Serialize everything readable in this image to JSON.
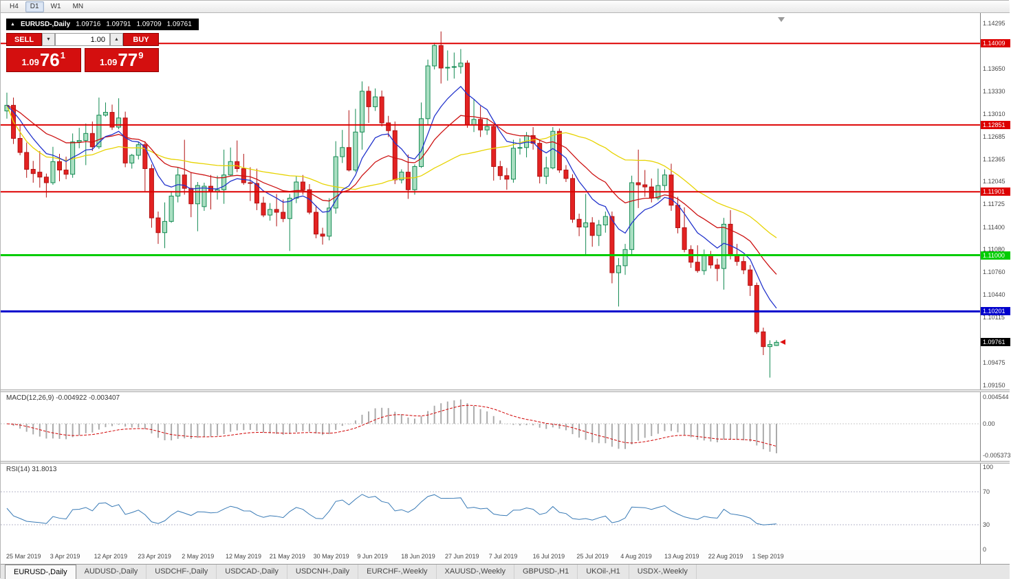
{
  "icons": {
    "window_marker": "▲",
    "spin_down": "▼",
    "spin_up": "▲",
    "shift_marker": "▼"
  },
  "toolbar": {
    "periods": [
      {
        "label": "H4",
        "active": false
      },
      {
        "label": "D1",
        "active": true
      },
      {
        "label": "W1",
        "active": false
      },
      {
        "label": "MN",
        "active": false
      }
    ]
  },
  "title_bar": {
    "symbol": "EURUSD-,Daily",
    "open": "1.09716",
    "high": "1.09791",
    "low": "1.09709",
    "close": "1.09761"
  },
  "trade_panel": {
    "sell_label": "SELL",
    "buy_label": "BUY",
    "volume": "1.00",
    "sell_price": {
      "big_left": "1.09",
      "pips": "76",
      "pip_frac": "1"
    },
    "buy_price": {
      "big_left": "1.09",
      "pips": "77",
      "pip_frac": "9"
    }
  },
  "price_axis": {
    "ticks": [
      "1.14295",
      "1.13650",
      "1.13330",
      "1.13010",
      "1.12685",
      "1.12365",
      "1.12045",
      "1.11725",
      "1.11400",
      "1.11080",
      "1.10760",
      "1.10440",
      "1.10115",
      "1.09475",
      "1.09150"
    ],
    "tags": [
      {
        "text": "1.14009",
        "price": 1.14009,
        "color": "#dd0000"
      },
      {
        "text": "1.12851",
        "price": 1.12851,
        "color": "#dd0000"
      },
      {
        "text": "1.11901",
        "price": 1.11901,
        "color": "#dd0000"
      },
      {
        "text": "1.11000",
        "price": 1.11,
        "color": "#00cc00"
      },
      {
        "text": "1.10201",
        "price": 1.10201,
        "color": "#0000cc"
      },
      {
        "text": "1.09761",
        "price": 1.09761,
        "color": "#000000"
      }
    ]
  },
  "macd_panel": {
    "label": "MACD(12,26,9)",
    "value_main": "-0.004922",
    "value_signal": "-0.003407",
    "axis": [
      "0.004544",
      "0.00",
      "-0.005373"
    ]
  },
  "rsi_panel": {
    "label": "RSI(14)",
    "value": "31.8013",
    "axis": [
      "100",
      "70",
      "30",
      "0"
    ]
  },
  "date_axis": [
    "25 Mar 2019",
    "3 Apr 2019",
    "12 Apr 2019",
    "23 Apr 2019",
    "2 May 2019",
    "12 May 2019",
    "21 May 2019",
    "30 May 2019",
    "9 Jun 2019",
    "18 Jun 2019",
    "27 Jun 2019",
    "7 Jul 2019",
    "16 Jul 2019",
    "25 Jul 2019",
    "4 Aug 2019",
    "13 Aug 2019",
    "22 Aug 2019",
    "1 Sep 2019"
  ],
  "tabs": [
    {
      "label": "EURUSD-,Daily",
      "active": true
    },
    {
      "label": "AUDUSD-,Daily",
      "active": false
    },
    {
      "label": "USDCHF-,Daily",
      "active": false
    },
    {
      "label": "USDCAD-,Daily",
      "active": false
    },
    {
      "label": "USDCNH-,Daily",
      "active": false
    },
    {
      "label": "EURCHF-,Weekly",
      "active": false
    },
    {
      "label": "XAUUSD-,Weekly",
      "active": false
    },
    {
      "label": "GBPUSD-,H1",
      "active": false
    },
    {
      "label": "UKOil-,H1",
      "active": false
    },
    {
      "label": "USDX-,Weekly",
      "active": false
    }
  ],
  "chart_data": [
    {
      "type": "candlestick",
      "title": "EURUSD-,Daily",
      "symbol": "EURUSD-",
      "timeframe": "Daily",
      "x_labels": [
        "25 Mar 2019",
        "3 Apr 2019",
        "12 Apr 2019",
        "23 Apr 2019",
        "2 May 2019",
        "12 May 2019",
        "21 May 2019",
        "30 May 2019",
        "9 Jun 2019",
        "18 Jun 2019",
        "27 Jun 2019",
        "7 Jul 2019",
        "16 Jul 2019",
        "25 Jul 2019",
        "4 Aug 2019",
        "13 Aug 2019",
        "22 Aug 2019",
        "1 Sep 2019"
      ],
      "ylim": [
        1.0915,
        1.14295
      ],
      "last_price": 1.09761,
      "horizontal_lines": [
        {
          "price": 1.14009,
          "color": "#dd0000",
          "width": 2
        },
        {
          "price": 1.12851,
          "color": "#dd0000",
          "width": 2
        },
        {
          "price": 1.11901,
          "color": "#dd0000",
          "width": 2
        },
        {
          "price": 1.11,
          "color": "#00cc00",
          "width": 3
        },
        {
          "price": 1.10201,
          "color": "#0000cc",
          "width": 3
        }
      ],
      "moving_averages": [
        {
          "name": "slow",
          "method": "sma",
          "period": 36,
          "color": "#e7d300"
        },
        {
          "name": "medium",
          "method": "ema",
          "period": 20,
          "color": "#cc1111"
        },
        {
          "name": "fast",
          "method": "ema",
          "period": 9,
          "color": "#2233cc"
        }
      ],
      "ohlc": [
        [
          1.1305,
          1.1331,
          1.1294,
          1.1313
        ],
        [
          1.1313,
          1.1324,
          1.1258,
          1.1266
        ],
        [
          1.1266,
          1.1284,
          1.1242,
          1.1246
        ],
        [
          1.1246,
          1.126,
          1.121,
          1.1222
        ],
        [
          1.1222,
          1.1234,
          1.1203,
          1.1216
        ],
        [
          1.1218,
          1.1248,
          1.1196,
          1.1211
        ],
        [
          1.1211,
          1.1216,
          1.1182,
          1.1203
        ],
        [
          1.1203,
          1.1254,
          1.12,
          1.1233
        ],
        [
          1.1233,
          1.1244,
          1.1205,
          1.1221
        ],
        [
          1.1221,
          1.124,
          1.1208,
          1.1215
        ],
        [
          1.1215,
          1.1273,
          1.121,
          1.1261
        ],
        [
          1.1261,
          1.1281,
          1.1252,
          1.1263
        ],
        [
          1.1263,
          1.1287,
          1.1228,
          1.1273
        ],
        [
          1.1273,
          1.129,
          1.1248,
          1.1254
        ],
        [
          1.1254,
          1.1324,
          1.1251,
          1.1299
        ],
        [
          1.1299,
          1.1317,
          1.1297,
          1.1303
        ],
        [
          1.1303,
          1.1314,
          1.1278,
          1.1282
        ],
        [
          1.1282,
          1.1323,
          1.1279,
          1.1295
        ],
        [
          1.1295,
          1.1304,
          1.1225,
          1.1231
        ],
        [
          1.1231,
          1.1244,
          1.1223,
          1.1242
        ],
        [
          1.1242,
          1.1261,
          1.1236,
          1.1257
        ],
        [
          1.1257,
          1.1262,
          1.1191,
          1.1223
        ],
        [
          1.1223,
          1.1229,
          1.1139,
          1.1153
        ],
        [
          1.1153,
          1.1162,
          1.1116,
          1.1132
        ],
        [
          1.1132,
          1.1175,
          1.111,
          1.1148
        ],
        [
          1.1148,
          1.1191,
          1.1146,
          1.1184
        ],
        [
          1.1184,
          1.1225,
          1.1175,
          1.1214
        ],
        [
          1.1214,
          1.1264,
          1.1186,
          1.1195
        ],
        [
          1.1195,
          1.1218,
          1.1154,
          1.1173
        ],
        [
          1.1173,
          1.1204,
          1.1134,
          1.1199
        ],
        [
          1.1169,
          1.1203,
          1.1163,
          1.1198
        ],
        [
          1.1198,
          1.1214,
          1.1165,
          1.119
        ],
        [
          1.119,
          1.1213,
          1.1179,
          1.1193
        ],
        [
          1.1193,
          1.125,
          1.1173,
          1.1214
        ],
        [
          1.1214,
          1.1253,
          1.1212,
          1.1233
        ],
        [
          1.1233,
          1.1263,
          1.1218,
          1.1223
        ],
        [
          1.1223,
          1.1244,
          1.12,
          1.1203
        ],
        [
          1.1203,
          1.1225,
          1.1177,
          1.1202
        ],
        [
          1.1202,
          1.1223,
          1.1164,
          1.1174
        ],
        [
          1.1174,
          1.1183,
          1.1154,
          1.1157
        ],
        [
          1.1157,
          1.1174,
          1.1149,
          1.1165
        ],
        [
          1.1165,
          1.1187,
          1.1141,
          1.1161
        ],
        [
          1.1161,
          1.1179,
          1.1147,
          1.1152
        ],
        [
          1.1152,
          1.1187,
          1.1106,
          1.1181
        ],
        [
          1.1181,
          1.1212,
          1.1174,
          1.1204
        ],
        [
          1.1204,
          1.1214,
          1.1186,
          1.1193
        ],
        [
          1.1193,
          1.1201,
          1.1158,
          1.1161
        ],
        [
          1.1161,
          1.1171,
          1.1124,
          1.113
        ],
        [
          1.113,
          1.1139,
          1.1115,
          1.1127
        ],
        [
          1.1127,
          1.1181,
          1.1121,
          1.1167
        ],
        [
          1.1167,
          1.1262,
          1.1159,
          1.124
        ],
        [
          1.124,
          1.1278,
          1.1231,
          1.1253
        ],
        [
          1.1253,
          1.1306,
          1.1219,
          1.1221
        ],
        [
          1.1221,
          1.1308,
          1.1218,
          1.1275
        ],
        [
          1.1275,
          1.1347,
          1.125,
          1.1333
        ],
        [
          1.1333,
          1.134,
          1.1288,
          1.1311
        ],
        [
          1.1311,
          1.1337,
          1.1305,
          1.1325
        ],
        [
          1.1325,
          1.1334,
          1.1283,
          1.1288
        ],
        [
          1.1288,
          1.1298,
          1.1268,
          1.1277
        ],
        [
          1.1277,
          1.129,
          1.1201,
          1.1207
        ],
        [
          1.1207,
          1.1222,
          1.1202,
          1.1218
        ],
        [
          1.1218,
          1.1243,
          1.118,
          1.1193
        ],
        [
          1.1193,
          1.1229,
          1.1186,
          1.1226
        ],
        [
          1.1226,
          1.1317,
          1.1224,
          1.1294
        ],
        [
          1.1294,
          1.1378,
          1.1286,
          1.1369
        ],
        [
          1.1369,
          1.1402,
          1.1364,
          1.1398
        ],
        [
          1.1398,
          1.1418,
          1.1344,
          1.1366
        ],
        [
          1.1366,
          1.1391,
          1.1348,
          1.1367
        ],
        [
          1.1367,
          1.1388,
          1.1351,
          1.1368
        ],
        [
          1.1368,
          1.1393,
          1.1358,
          1.1373
        ],
        [
          1.1373,
          1.1377,
          1.1281,
          1.1285
        ],
        [
          1.1285,
          1.1322,
          1.1275,
          1.1293
        ],
        [
          1.1293,
          1.1312,
          1.1268,
          1.1278
        ],
        [
          1.1278,
          1.1295,
          1.1271,
          1.1283
        ],
        [
          1.1283,
          1.1286,
          1.1206,
          1.1226
        ],
        [
          1.1226,
          1.1234,
          1.1207,
          1.1213
        ],
        [
          1.1213,
          1.1224,
          1.1193,
          1.1208
        ],
        [
          1.1208,
          1.1264,
          1.1203,
          1.1252
        ],
        [
          1.1252,
          1.1266,
          1.1243,
          1.1253
        ],
        [
          1.1253,
          1.1275,
          1.1239,
          1.127
        ],
        [
          1.127,
          1.1282,
          1.125,
          1.1259
        ],
        [
          1.1259,
          1.1263,
          1.1202,
          1.1212
        ],
        [
          1.1212,
          1.124,
          1.1201,
          1.1224
        ],
        [
          1.1224,
          1.1282,
          1.1222,
          1.1276
        ],
        [
          1.1276,
          1.128,
          1.1217,
          1.1221
        ],
        [
          1.1221,
          1.1228,
          1.1204,
          1.1209
        ],
        [
          1.1209,
          1.1215,
          1.1146,
          1.1151
        ],
        [
          1.1151,
          1.1159,
          1.1127,
          1.114
        ],
        [
          1.114,
          1.1187,
          1.1101,
          1.1146
        ],
        [
          1.1146,
          1.1154,
          1.1112,
          1.1128
        ],
        [
          1.1128,
          1.115,
          1.1113,
          1.1143
        ],
        [
          1.1143,
          1.1162,
          1.1132,
          1.1155
        ],
        [
          1.1155,
          1.1162,
          1.106,
          1.1075
        ],
        [
          1.1075,
          1.1096,
          1.1027,
          1.1085
        ],
        [
          1.1085,
          1.1116,
          1.1072,
          1.1108
        ],
        [
          1.1108,
          1.1213,
          1.1101,
          1.1203
        ],
        [
          1.1203,
          1.125,
          1.1167,
          1.12
        ],
        [
          1.12,
          1.1221,
          1.1183,
          1.1197
        ],
        [
          1.1197,
          1.1209,
          1.1175,
          1.1181
        ],
        [
          1.1181,
          1.1223,
          1.1178,
          1.1199
        ],
        [
          1.1199,
          1.1222,
          1.1192,
          1.1214
        ],
        [
          1.1214,
          1.123,
          1.1163,
          1.1171
        ],
        [
          1.1171,
          1.1183,
          1.1131,
          1.1139
        ],
        [
          1.1139,
          1.1168,
          1.1104,
          1.1108
        ],
        [
          1.1108,
          1.1114,
          1.1082,
          1.109
        ],
        [
          1.109,
          1.1114,
          1.1075,
          1.1078
        ],
        [
          1.1078,
          1.1108,
          1.1072,
          1.1099
        ],
        [
          1.1099,
          1.1106,
          1.1081,
          1.1086
        ],
        [
          1.1086,
          1.1095,
          1.1063,
          1.1081
        ],
        [
          1.1081,
          1.1153,
          1.1051,
          1.1144
        ],
        [
          1.1144,
          1.1164,
          1.1094,
          1.1101
        ],
        [
          1.1101,
          1.1116,
          1.1085,
          1.1091
        ],
        [
          1.1091,
          1.1098,
          1.1073,
          1.1079
        ],
        [
          1.1079,
          1.1086,
          1.1042,
          1.1057
        ],
        [
          1.1057,
          1.1061,
          1.0988,
          1.0991
        ],
        [
          1.0991,
          1.0997,
          1.0958,
          1.097
        ],
        [
          1.097,
          1.0979,
          1.0926,
          1.0973
        ],
        [
          1.09716,
          1.09791,
          1.09709,
          1.09761
        ]
      ]
    },
    {
      "type": "bar",
      "title": "MACD(12,26,9)",
      "params": [
        12,
        26,
        9
      ],
      "current_values": [
        -0.004922,
        -0.003407
      ],
      "axis_labels": [
        0.004544,
        0.0,
        -0.005373
      ],
      "ylim": [
        -0.005373,
        0.004544
      ],
      "source": "computed from ohlc closes"
    },
    {
      "type": "line",
      "title": "RSI(14)",
      "period": 14,
      "current_value": 31.8013,
      "levels": [
        70,
        30
      ],
      "ylim": [
        0,
        100
      ],
      "source": "computed from ohlc closes"
    }
  ]
}
